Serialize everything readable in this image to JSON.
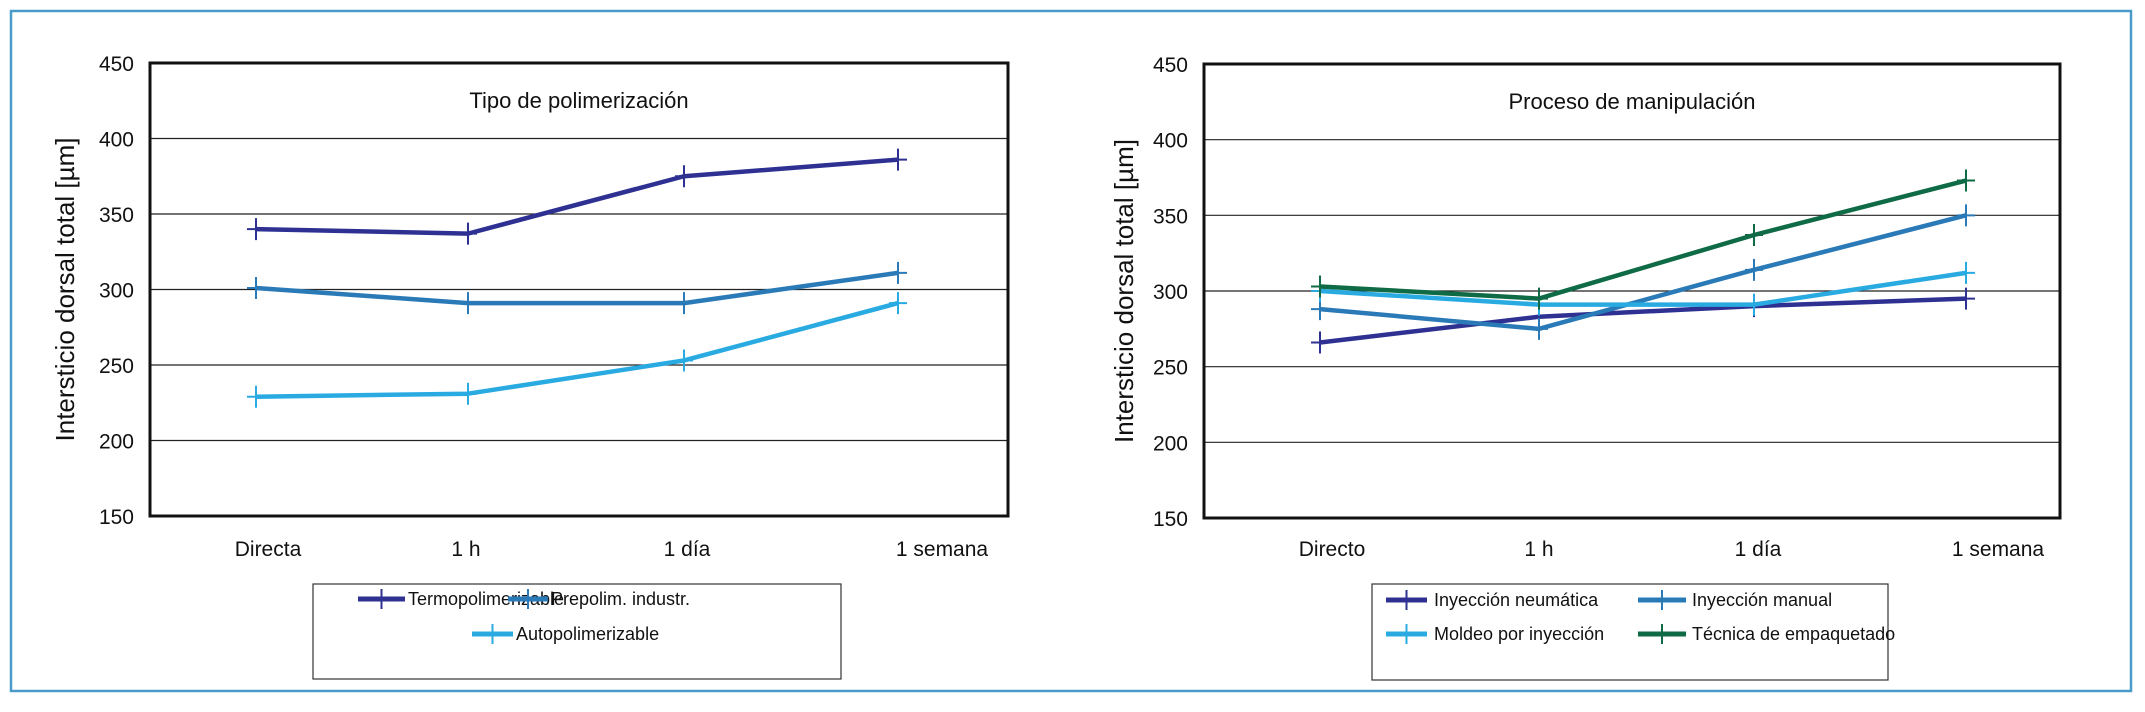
{
  "colors": {
    "frame": "#4a9bc8",
    "navy": "#2e3192",
    "mid": "#2a7ab8",
    "light": "#29abe2",
    "green": "#0f6b45"
  },
  "chart_data": [
    {
      "type": "line",
      "title": "Tipo de polimerización",
      "xlabel": "",
      "ylabel": "Intersticio dorsal total [µm]",
      "ylim": [
        150,
        450
      ],
      "yticks": [
        "150",
        "200",
        "250",
        "300",
        "350",
        "400",
        "450"
      ],
      "categories": [
        "Directa",
        "1 h",
        "1 día",
        "1 semana"
      ],
      "grid": true,
      "legend": "bottom",
      "series": [
        {
          "name": "Termopolimerizable",
          "color": "#2e3192",
          "values": [
            340,
            337,
            375,
            386
          ]
        },
        {
          "name": "Prepolim. industr.",
          "color": "#2a7ab8",
          "values": [
            301,
            291,
            291,
            311
          ]
        },
        {
          "name": "Autopolimerizable",
          "color": "#29abe2",
          "values": [
            229,
            231,
            253,
            291
          ]
        }
      ]
    },
    {
      "type": "line",
      "title": "Proceso de manipulación",
      "xlabel": "",
      "ylabel": "Intersticio dorsal total [µm]",
      "ylim": [
        150,
        450
      ],
      "yticks": [
        "150",
        "200",
        "250",
        "300",
        "350",
        "400",
        "450"
      ],
      "categories": [
        "Directo",
        "1 h",
        "1 día",
        "1 semana"
      ],
      "grid": true,
      "legend": "bottom",
      "series": [
        {
          "name": "Inyección neumática",
          "color": "#2e3192",
          "values": [
            266,
            283,
            290,
            295
          ]
        },
        {
          "name": "Inyección manual",
          "color": "#2a7ab8",
          "values": [
            288,
            275,
            314,
            350
          ]
        },
        {
          "name": "Moldeo por inyección",
          "color": "#29abe2",
          "values": [
            300,
            291,
            291,
            312
          ]
        },
        {
          "name": "Técnica de empaquetado",
          "color": "#0f6b45",
          "values": [
            303,
            295,
            337,
            373
          ]
        }
      ]
    }
  ]
}
